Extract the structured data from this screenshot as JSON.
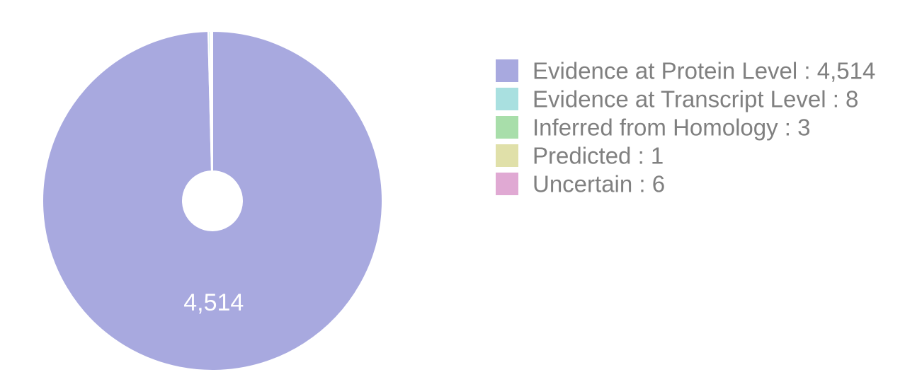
{
  "chart_data": {
    "type": "pie",
    "donut": true,
    "categories": [
      "Evidence at Protein Level",
      "Evidence at Transcript Level",
      "Inferred from Homology",
      "Predicted",
      "Uncertain"
    ],
    "values": [
      4514,
      8,
      3,
      1,
      6
    ],
    "value_labels": [
      "4,514",
      "8",
      "3",
      "1",
      "6"
    ],
    "colors": [
      "#a8a9df",
      "#a9e0e0",
      "#a8deaa",
      "#e0e0a9",
      "#e0a9d3"
    ],
    "legend_position": "right",
    "slice_labels_shown": [
      "4,514"
    ]
  }
}
